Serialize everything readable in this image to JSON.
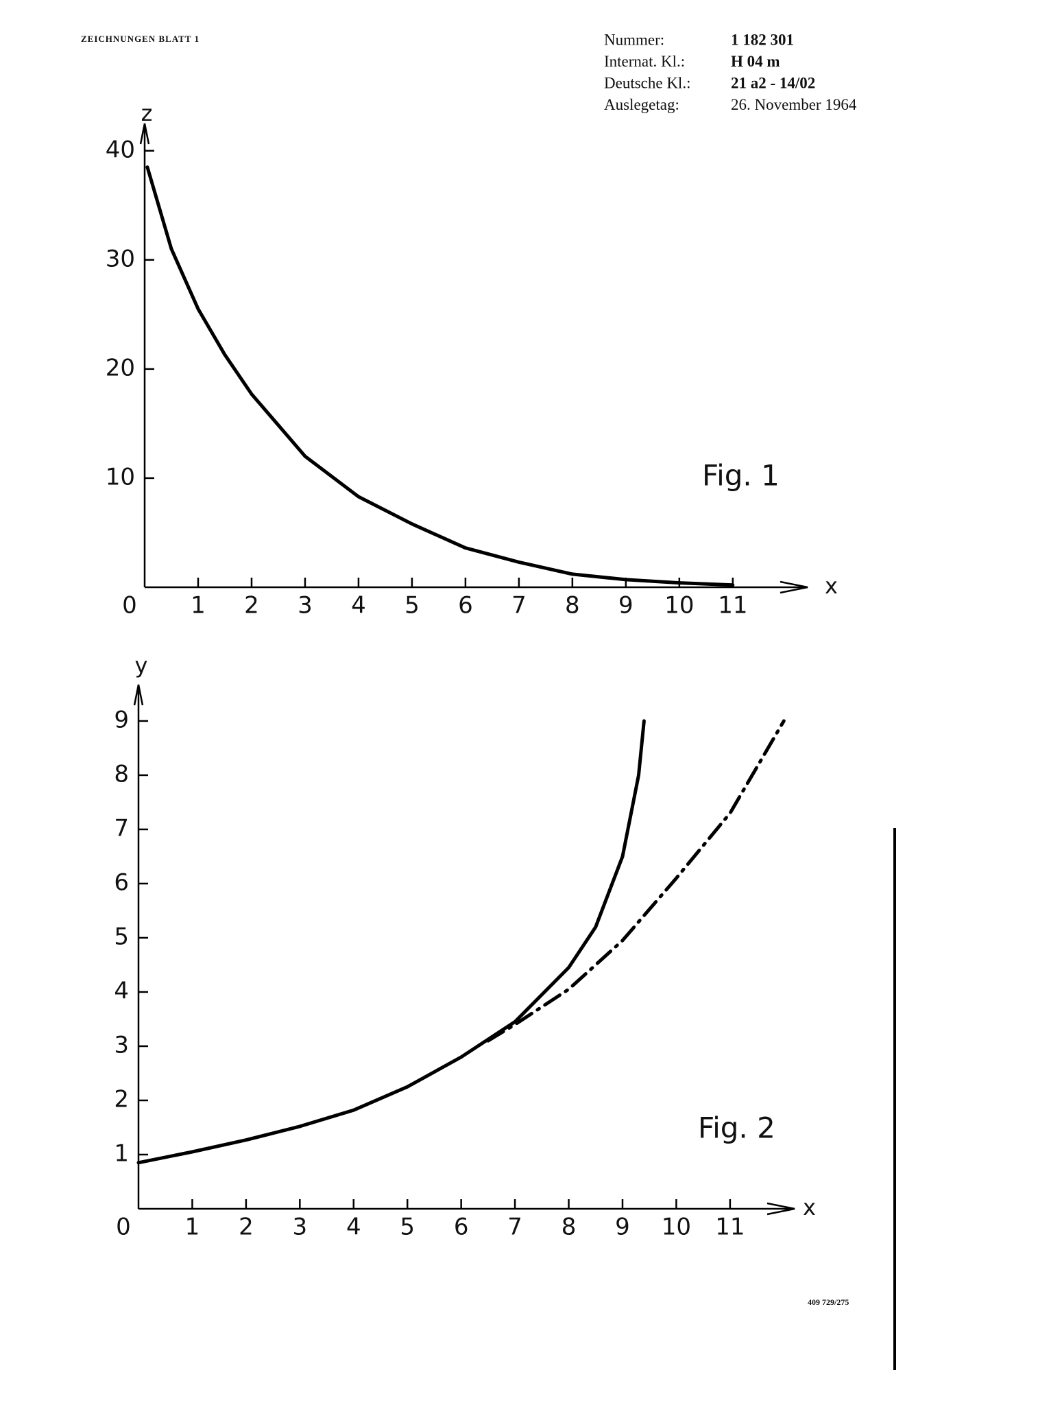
{
  "header": {
    "title": "ZEICHNUNGEN BLATT 1",
    "fields": [
      [
        "Nummer:",
        "1 182 301"
      ],
      [
        "Internat. Kl.:",
        "H 04 m"
      ],
      [
        "Deutsche Kl.:",
        "21 a2 - 14/02"
      ],
      [
        "Auslegetag:",
        "26. November 1964"
      ]
    ]
  },
  "chart_data": [
    {
      "type": "line",
      "title": "Fig. 1",
      "x_label": "x",
      "y_label": "z",
      "xlim": [
        0,
        12.4
      ],
      "ylim": [
        0,
        42.5
      ],
      "xticks": [
        0,
        1,
        2,
        3,
        4,
        5,
        6,
        7,
        8,
        9,
        10,
        11
      ],
      "yticks": [
        10,
        20,
        30,
        40
      ],
      "series": [
        {
          "color": "#000000",
          "linestyle": "solid",
          "x": [
            0.05,
            0.5,
            1,
            1.5,
            2,
            3,
            4,
            5,
            6,
            7,
            8,
            9,
            10,
            11
          ],
          "values": [
            38.5,
            31,
            25.5,
            21.3,
            17.7,
            12,
            8.3,
            5.8,
            3.6,
            2.3,
            1.2,
            0.7,
            0.4,
            0.2
          ]
        }
      ]
    },
    {
      "type": "line",
      "title": "Fig. 2",
      "x_label": "x",
      "y_label": "y",
      "xlim": [
        0,
        12.2
      ],
      "ylim": [
        0,
        9.67
      ],
      "xticks": [
        0,
        1,
        2,
        3,
        4,
        5,
        6,
        7,
        8,
        9,
        10,
        11
      ],
      "yticks": [
        1,
        2,
        3,
        4,
        5,
        6,
        7,
        8,
        9
      ],
      "series": [
        {
          "color": "#000000",
          "linestyle": "solid",
          "x": [
            0,
            1,
            2,
            3,
            4,
            5,
            6,
            7,
            8,
            8.5,
            9,
            9.3,
            9.4
          ],
          "values": [
            0.85,
            1.05,
            1.27,
            1.52,
            1.82,
            2.25,
            2.8,
            3.45,
            4.45,
            5.2,
            6.5,
            8,
            9
          ]
        },
        {
          "color": "#000000",
          "linestyle": "dashdot",
          "x": [
            6.5,
            7,
            8,
            9,
            10,
            11,
            12
          ],
          "values": [
            3.1,
            3.4,
            4.05,
            4.95,
            6.1,
            7.3,
            9
          ]
        }
      ]
    }
  ],
  "footer": "409 729/275"
}
